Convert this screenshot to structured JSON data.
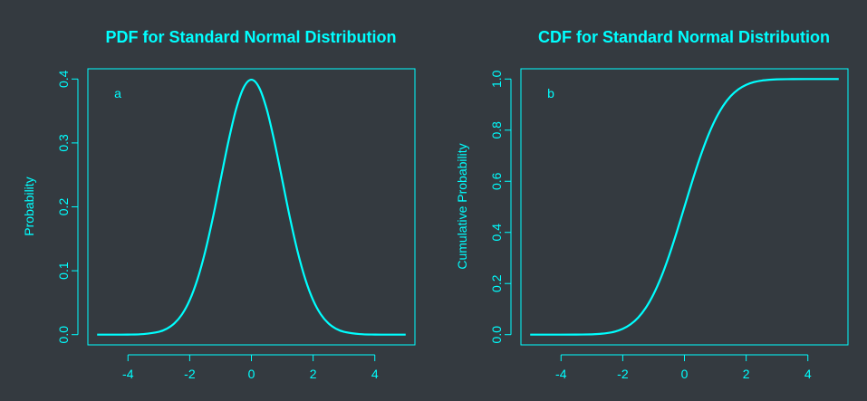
{
  "theme": {
    "background": "#343a40",
    "foreground": "#00ffff"
  },
  "chart_data": [
    {
      "type": "line",
      "title": "PDF for Standard Normal Distribution",
      "xlabel": "",
      "ylabel": "Probability",
      "panel_label": "a",
      "xlim": [
        -5.3,
        5.3
      ],
      "ylim": [
        -0.016,
        0.416
      ],
      "x_ticks": [
        -4,
        -2,
        0,
        2,
        4
      ],
      "x_tick_labels": [
        "-4",
        "-2",
        "0",
        "2",
        "4"
      ],
      "y_ticks": [
        0.0,
        0.1,
        0.2,
        0.3,
        0.4
      ],
      "y_tick_labels": [
        "0.0",
        "0.1",
        "0.2",
        "0.3",
        "0.4"
      ],
      "grid": false,
      "series": [
        {
          "color": "#00ffff",
          "x": [
            -5,
            -4.5,
            -4,
            -3.5,
            -3,
            -2.75,
            -2.5,
            -2.25,
            -2,
            -1.75,
            -1.5,
            -1.25,
            -1,
            -0.75,
            -0.5,
            -0.25,
            0,
            0.25,
            0.5,
            0.75,
            1,
            1.25,
            1.5,
            1.75,
            2,
            2.25,
            2.5,
            2.75,
            3,
            3.5,
            4,
            4.5,
            5
          ],
          "y": [
            0.0,
            0.0,
            0.0001,
            0.0009,
            0.0044,
            0.0091,
            0.0175,
            0.0317,
            0.054,
            0.0863,
            0.1295,
            0.1826,
            0.242,
            0.3011,
            0.3521,
            0.3867,
            0.3989,
            0.3867,
            0.3521,
            0.3011,
            0.242,
            0.1826,
            0.1295,
            0.0863,
            0.054,
            0.0317,
            0.0175,
            0.0091,
            0.0044,
            0.0009,
            0.0001,
            0.0,
            0.0
          ]
        }
      ]
    },
    {
      "type": "line",
      "title": "CDF for Standard Normal Distribution",
      "xlabel": "",
      "ylabel": "Cumulative Probability",
      "panel_label": "b",
      "xlim": [
        -5.3,
        5.3
      ],
      "ylim": [
        -0.04,
        1.04
      ],
      "x_ticks": [
        -4,
        -2,
        0,
        2,
        4
      ],
      "x_tick_labels": [
        "-4",
        "-2",
        "0",
        "2",
        "4"
      ],
      "y_ticks": [
        0.0,
        0.2,
        0.4,
        0.6,
        0.8,
        1.0
      ],
      "y_tick_labels": [
        "0.0",
        "0.2",
        "0.4",
        "0.6",
        "0.8",
        "1.0"
      ],
      "grid": false,
      "series": [
        {
          "color": "#00ffff",
          "x": [
            -5,
            -4.5,
            -4,
            -3.5,
            -3,
            -2.75,
            -2.5,
            -2.25,
            -2,
            -1.75,
            -1.5,
            -1.25,
            -1,
            -0.75,
            -0.5,
            -0.25,
            0,
            0.25,
            0.5,
            0.75,
            1,
            1.25,
            1.5,
            1.75,
            2,
            2.25,
            2.5,
            2.75,
            3,
            3.5,
            4,
            4.5,
            5
          ],
          "y": [
            0.0,
            0.0,
            0.0,
            0.0002,
            0.0013,
            0.003,
            0.0062,
            0.0122,
            0.0228,
            0.0401,
            0.0668,
            0.1056,
            0.1587,
            0.2266,
            0.3085,
            0.4013,
            0.5,
            0.5987,
            0.6915,
            0.7734,
            0.8413,
            0.8944,
            0.9332,
            0.9599,
            0.9772,
            0.9878,
            0.9938,
            0.997,
            0.9987,
            0.9998,
            1.0,
            1.0,
            1.0
          ]
        }
      ]
    }
  ]
}
